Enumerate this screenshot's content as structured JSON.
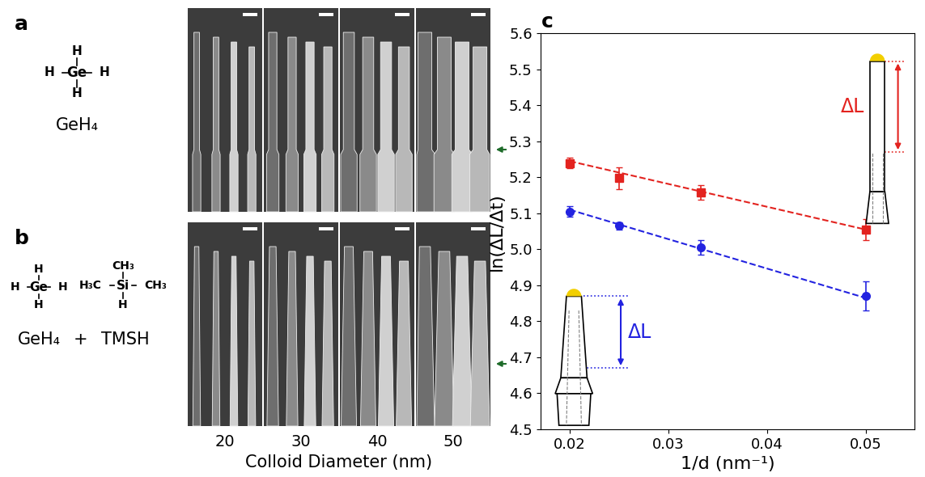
{
  "panel_labels": [
    "a",
    "b",
    "c"
  ],
  "sem_panels": {
    "rows": [
      {
        "molecules": [
          {
            "center": "Ge",
            "substituents": [
              "H",
              "H",
              "H",
              "H"
            ],
            "caption": "GeH₄"
          }
        ]
      },
      {
        "molecules": [
          {
            "center": "Ge",
            "substituents": [
              "H",
              "H",
              "H",
              "H"
            ],
            "caption": "GeH₄"
          },
          {
            "center": "Si",
            "substituents": [
              "CH₃",
              "H₃C",
              "CH₃",
              "H"
            ],
            "caption": "TMSH"
          }
        ],
        "joiner": "+"
      }
    ],
    "diameters": [
      20,
      30,
      40,
      50
    ],
    "xlabel": "Colloid Diameter (nm)"
  },
  "chart_data": {
    "type": "scatter",
    "xlabel": "1/d (nm⁻¹)",
    "ylabel": "ln(ΔL/Δt)",
    "xlim": [
      0.017,
      0.055
    ],
    "xticks": [
      0.02,
      0.03,
      0.04,
      0.05
    ],
    "ylim": [
      4.5,
      5.6
    ],
    "yticks": [
      4.5,
      4.6,
      4.7,
      4.8,
      4.9,
      5.0,
      5.1,
      5.2,
      5.3,
      5.4,
      5.5,
      5.6
    ],
    "series": [
      {
        "type": "scatter",
        "color": "#e3231f",
        "marker": "square",
        "x": [
          0.02,
          0.025,
          0.0333,
          0.05
        ],
        "values": [
          5.24,
          5.198,
          5.158,
          5.055
        ],
        "errors": [
          0.015,
          0.03,
          0.02,
          0.03
        ]
      },
      {
        "type": "line",
        "color": "#e3231f",
        "line_style": "dashed",
        "x": [
          0.02,
          0.05
        ],
        "values": [
          5.245,
          5.055
        ]
      },
      {
        "type": "scatter",
        "color": "#2323e0",
        "marker": "circle",
        "x": [
          0.02,
          0.025,
          0.0333,
          0.05
        ],
        "values": [
          5.105,
          5.065,
          5.005,
          4.87
        ],
        "errors": [
          0.015,
          0.01,
          0.02,
          0.04
        ]
      },
      {
        "type": "line",
        "color": "#2323e0",
        "line_style": "dashed",
        "x": [
          0.02,
          0.05
        ],
        "values": [
          5.11,
          4.865
        ]
      }
    ],
    "annotations": [
      {
        "text": "ΔL",
        "color": "#e3231f"
      },
      {
        "text": "ΔL",
        "color": "#2323e0"
      }
    ]
  }
}
